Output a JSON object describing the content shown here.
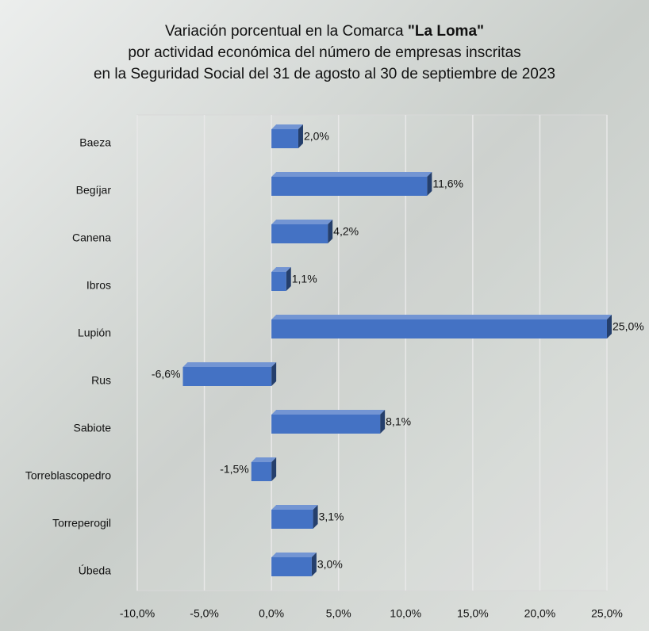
{
  "chart_data": {
    "type": "bar",
    "orientation": "horizontal",
    "title_lines": [
      [
        "Variación porcentual en la Comarca ",
        "\"La Loma\""
      ],
      [
        "por actividad económica del número de empresas inscritas"
      ],
      [
        "en la Seguridad Social del 31 de agosto al 30 de septiembre de 2023"
      ]
    ],
    "categories": [
      "Baeza",
      "Begíjar",
      "Canena",
      "Ibros",
      "Lupión",
      "Rus",
      "Sabiote",
      "Torreblascopedro",
      "Torreperogil",
      "Úbeda"
    ],
    "values": [
      2.0,
      11.6,
      4.2,
      1.1,
      25.0,
      -6.6,
      8.1,
      -1.5,
      3.1,
      3.0
    ],
    "value_labels": [
      "2,0%",
      "11,6%",
      "4,2%",
      "1,1%",
      "25,0%",
      "-6,6%",
      "8,1%",
      "-1,5%",
      "3,1%",
      "3,0%"
    ],
    "color": "#4472c4",
    "xlim": [
      -10,
      25
    ],
    "xticks": [
      {
        "value": -10,
        "label": "-10,0%"
      },
      {
        "value": -5,
        "label": "-5,0%"
      },
      {
        "value": 0,
        "label": "0,0%"
      },
      {
        "value": 5,
        "label": "5,0%"
      },
      {
        "value": 10,
        "label": "10,0%"
      },
      {
        "value": 15,
        "label": "15,0%"
      },
      {
        "value": 20,
        "label": "20,0%"
      },
      {
        "value": 25,
        "label": "25,0%"
      }
    ],
    "grid": true
  }
}
